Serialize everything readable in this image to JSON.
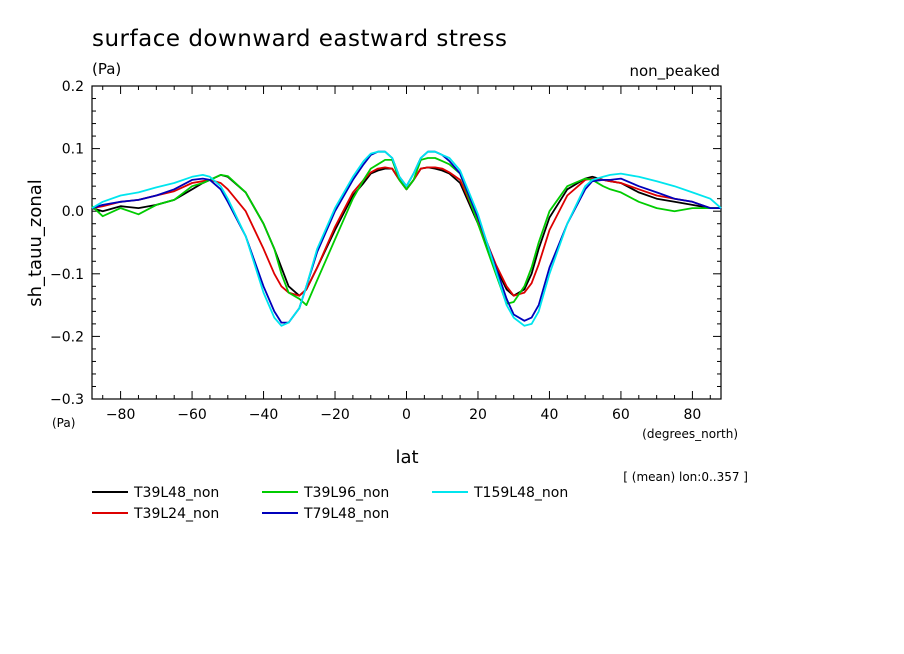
{
  "chart_data": {
    "type": "line",
    "title": "surface downward eastward stress",
    "units_label": "(Pa)",
    "annotation": "non_peaked",
    "xlabel": "lat",
    "xunit_label": "(degrees_north)",
    "ylabel": "sh_tauu_zonal",
    "yunit_label": "(Pa)",
    "footnote": "[ (mean) lon:0..357 ]",
    "xlim": [
      -88,
      88
    ],
    "ylim": [
      -0.3,
      0.2
    ],
    "xticks": [
      -80,
      -60,
      -40,
      -20,
      0,
      20,
      40,
      60,
      80
    ],
    "xtick_labels": [
      "−80",
      "−60",
      "−40",
      "−20",
      "0",
      "20",
      "40",
      "60",
      "80"
    ],
    "yticks": [
      0.2,
      0.1,
      0.0,
      -0.1,
      -0.2,
      -0.3
    ],
    "ytick_labels": [
      "0.2",
      "0.1",
      "0.0",
      "−0.1",
      "−0.2",
      "−0.3"
    ],
    "x": [
      -88,
      -85,
      -80,
      -75,
      -70,
      -65,
      -60,
      -57,
      -55,
      -52,
      -50,
      -45,
      -40,
      -37,
      -35,
      -33,
      -30,
      -28,
      -25,
      -20,
      -15,
      -12,
      -10,
      -8,
      -6,
      -4,
      -2,
      0,
      2,
      4,
      6,
      8,
      10,
      12,
      15,
      20,
      25,
      28,
      30,
      33,
      35,
      37,
      40,
      45,
      50,
      52,
      55,
      57,
      60,
      65,
      70,
      75,
      80,
      85,
      88
    ],
    "series": [
      {
        "name": "T39L48_non",
        "color": "#000000",
        "values": [
          0.005,
          0.0,
          0.008,
          0.005,
          0.01,
          0.018,
          0.035,
          0.045,
          0.05,
          0.058,
          0.055,
          0.03,
          -0.02,
          -0.06,
          -0.09,
          -0.12,
          -0.135,
          -0.125,
          -0.09,
          -0.03,
          0.025,
          0.045,
          0.06,
          0.065,
          0.068,
          0.068,
          0.05,
          0.035,
          0.05,
          0.068,
          0.07,
          0.068,
          0.065,
          0.06,
          0.045,
          -0.02,
          -0.09,
          -0.125,
          -0.135,
          -0.125,
          -0.1,
          -0.06,
          -0.01,
          0.035,
          0.052,
          0.055,
          0.05,
          0.048,
          0.045,
          0.03,
          0.02,
          0.015,
          0.01,
          0.005,
          0.005
        ]
      },
      {
        "name": "T39L24_non",
        "color": "#dd0000",
        "values": [
          0.005,
          0.008,
          0.015,
          0.018,
          0.025,
          0.032,
          0.045,
          0.048,
          0.05,
          0.045,
          0.035,
          0.0,
          -0.06,
          -0.1,
          -0.12,
          -0.13,
          -0.135,
          -0.125,
          -0.09,
          -0.025,
          0.03,
          0.05,
          0.062,
          0.068,
          0.07,
          0.068,
          0.05,
          0.035,
          0.05,
          0.068,
          0.07,
          0.07,
          0.068,
          0.062,
          0.05,
          -0.015,
          -0.085,
          -0.12,
          -0.135,
          -0.13,
          -0.115,
          -0.085,
          -0.03,
          0.025,
          0.05,
          0.052,
          0.05,
          0.048,
          0.045,
          0.035,
          0.025,
          0.02,
          0.015,
          0.005,
          0.005
        ]
      },
      {
        "name": "T39L96_non",
        "color": "#00cc00",
        "values": [
          0.008,
          -0.008,
          0.005,
          -0.005,
          0.01,
          0.018,
          0.04,
          0.045,
          0.05,
          0.058,
          0.056,
          0.03,
          -0.02,
          -0.06,
          -0.1,
          -0.13,
          -0.14,
          -0.15,
          -0.11,
          -0.045,
          0.02,
          0.05,
          0.068,
          0.075,
          0.082,
          0.082,
          0.05,
          0.035,
          0.05,
          0.082,
          0.085,
          0.085,
          0.08,
          0.075,
          0.06,
          -0.02,
          -0.1,
          -0.148,
          -0.145,
          -0.12,
          -0.09,
          -0.05,
          0.0,
          0.04,
          0.052,
          0.05,
          0.04,
          0.035,
          0.03,
          0.015,
          0.005,
          0.0,
          0.005,
          0.005,
          0.005
        ]
      },
      {
        "name": "T79L48_non",
        "color": "#0000bb",
        "values": [
          0.005,
          0.01,
          0.015,
          0.018,
          0.025,
          0.035,
          0.05,
          0.052,
          0.05,
          0.035,
          0.015,
          -0.04,
          -0.12,
          -0.16,
          -0.178,
          -0.178,
          -0.155,
          -0.12,
          -0.065,
          0.0,
          0.05,
          0.075,
          0.09,
          0.095,
          0.095,
          0.085,
          0.055,
          0.04,
          0.06,
          0.085,
          0.095,
          0.095,
          0.09,
          0.08,
          0.06,
          -0.01,
          -0.09,
          -0.14,
          -0.165,
          -0.175,
          -0.17,
          -0.15,
          -0.09,
          -0.02,
          0.035,
          0.048,
          0.05,
          0.05,
          0.052,
          0.04,
          0.03,
          0.02,
          0.015,
          0.005,
          0.005
        ]
      },
      {
        "name": "T159L48_non",
        "color": "#00e5ee",
        "values": [
          0.005,
          0.015,
          0.025,
          0.03,
          0.038,
          0.045,
          0.055,
          0.058,
          0.055,
          0.04,
          0.02,
          -0.04,
          -0.13,
          -0.17,
          -0.183,
          -0.178,
          -0.155,
          -0.12,
          -0.06,
          0.005,
          0.055,
          0.08,
          0.092,
          0.095,
          0.095,
          0.085,
          0.055,
          0.04,
          0.06,
          0.085,
          0.095,
          0.095,
          0.09,
          0.085,
          0.065,
          -0.005,
          -0.095,
          -0.15,
          -0.17,
          -0.183,
          -0.18,
          -0.16,
          -0.1,
          -0.02,
          0.04,
          0.05,
          0.055,
          0.058,
          0.06,
          0.055,
          0.048,
          0.04,
          0.03,
          0.02,
          0.005
        ]
      }
    ]
  }
}
